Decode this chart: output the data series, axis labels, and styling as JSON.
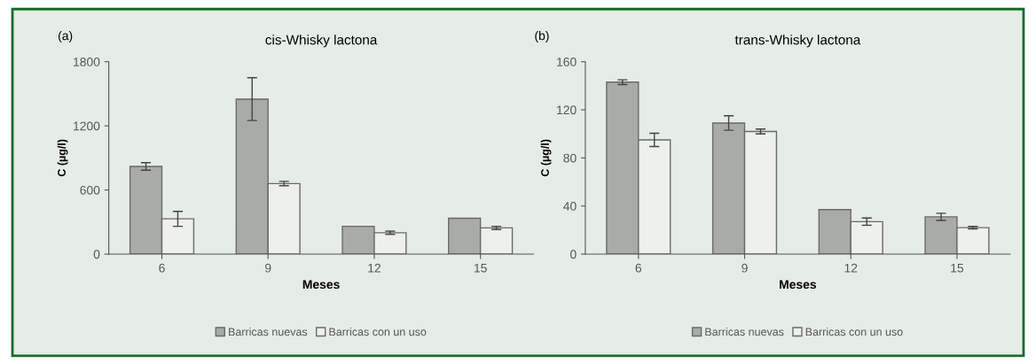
{
  "chart_data": [
    {
      "type": "bar",
      "title": "cis-Whisky lactona",
      "xlabel": "Meses",
      "ylabel": "C (µg/l)",
      "annotations": [
        "(a)"
      ],
      "categories": [
        "6",
        "9",
        "12",
        "15"
      ],
      "ylim": [
        0,
        1800
      ],
      "yticks": [
        0,
        600,
        1200,
        1800
      ],
      "grid": false,
      "legend": "bottom",
      "series": [
        {
          "name": "Barricas nuevas",
          "color": "#a9aba9",
          "values": [
            820,
            1450,
            260,
            335
          ],
          "errors": [
            35,
            200,
            null,
            null
          ]
        },
        {
          "name": "Barricas con un uso",
          "color": "#eef0ec",
          "values": [
            330,
            660,
            200,
            245
          ],
          "errors": [
            70,
            20,
            15,
            15
          ]
        }
      ]
    },
    {
      "type": "bar",
      "title": "trans-Whisky lactona",
      "xlabel": "Meses",
      "ylabel": "C (µg/l)",
      "annotations": [
        "(b)"
      ],
      "categories": [
        "6",
        "9",
        "12",
        "15"
      ],
      "ylim": [
        0,
        160
      ],
      "yticks": [
        0,
        40,
        80,
        120,
        160
      ],
      "grid": false,
      "legend": "bottom",
      "series": [
        {
          "name": "Barricas nuevas",
          "color": "#a9aba9",
          "values": [
            143,
            109,
            37,
            31
          ],
          "errors": [
            2,
            6,
            null,
            3
          ]
        },
        {
          "name": "Barricas con un uso",
          "color": "#eef0ec",
          "values": [
            95,
            102,
            27,
            22
          ],
          "errors": [
            5.5,
            2,
            3,
            1
          ]
        }
      ]
    }
  ]
}
